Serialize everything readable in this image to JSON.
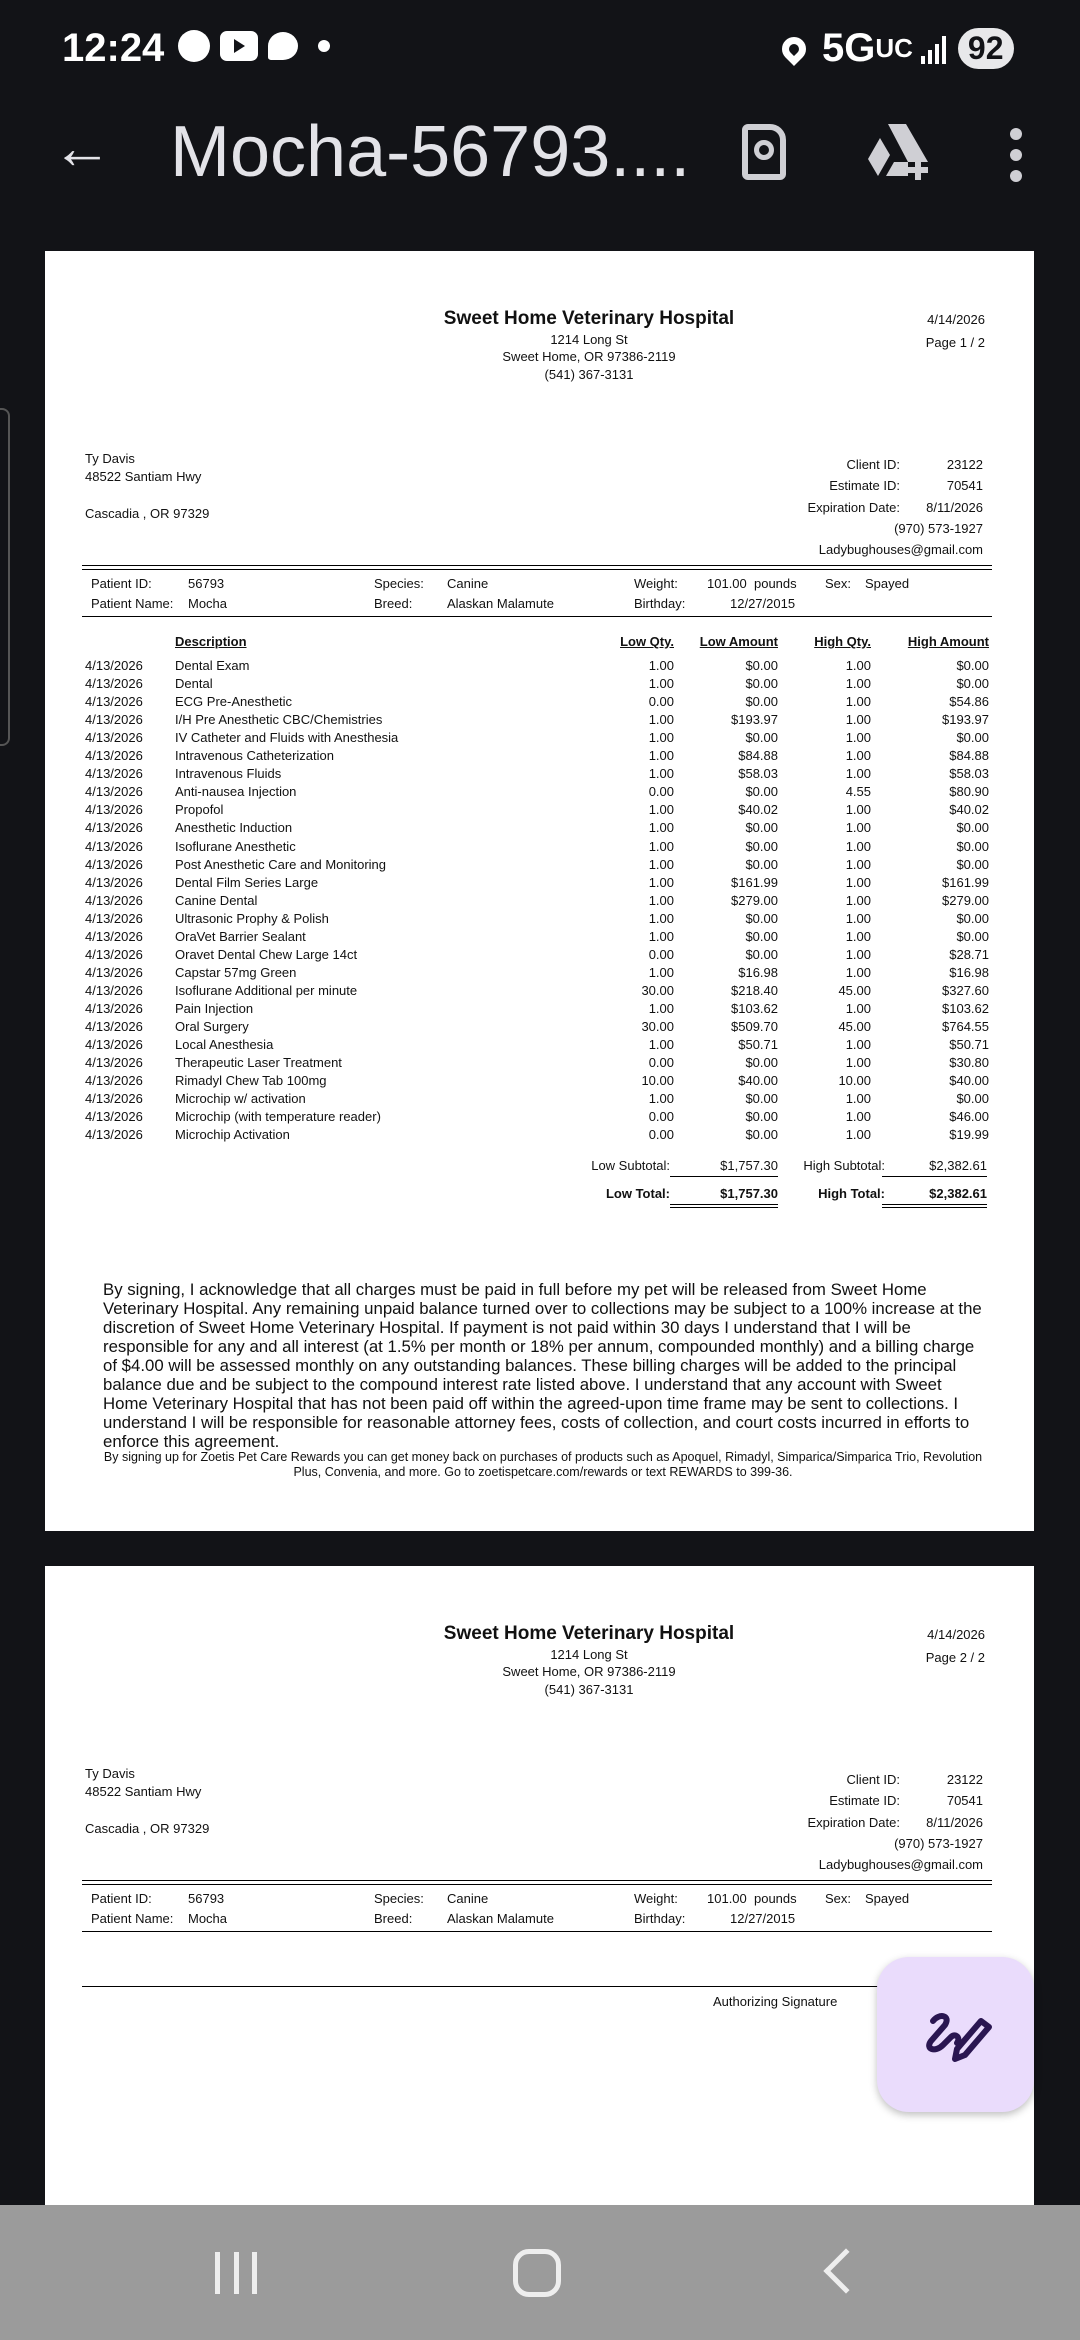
{
  "status_bar": {
    "time": "12:24",
    "network": "5G",
    "network_suffix": "UC",
    "battery": "92",
    "icons": [
      "messenger-icon",
      "youtube-icon",
      "chat-icon",
      "dot-icon",
      "location-icon",
      "signal-icon"
    ]
  },
  "toolbar": {
    "title": "Mocha-56793....",
    "icons": [
      "back-arrow-icon",
      "find-in-document-icon",
      "add-to-drive-icon",
      "more-vert-icon"
    ]
  },
  "document": {
    "hospital": {
      "name": "Sweet Home Veterinary Hospital",
      "address1": "1214 Long St",
      "address2": "Sweet Home, OR 97386-2119",
      "phone": "(541) 367-3131"
    },
    "date": "4/14/2026",
    "pages": [
      "Page 1 / 2",
      "Page 2 / 2"
    ],
    "client": {
      "name": "Ty Davis",
      "address1": "48522 Santiam Hwy",
      "address2": "Cascadia , OR 97329",
      "client_id_label": "Client ID:",
      "client_id": "23122",
      "estimate_id_label": "Estimate ID:",
      "estimate_id": "70541",
      "expiration_label": "Expiration Date:",
      "expiration": "8/11/2026",
      "phone": "(970) 573-1927",
      "email": "Ladybughouses@gmail.com"
    },
    "patient": {
      "id_label": "Patient ID:",
      "id": "56793",
      "name_label": "Patient Name:",
      "name": "Mocha",
      "species_label": "Species:",
      "species": "Canine",
      "breed_label": "Breed:",
      "breed": "Alaskan Malamute",
      "weight_label": "Weight:",
      "weight": "101.00  pounds",
      "birthday_label": "Birthday:",
      "birthday": "12/27/2015",
      "sex_label": "Sex:",
      "sex": "Spayed"
    },
    "table": {
      "headers": [
        "Description",
        "Low Qty.",
        "Low Amount",
        "High Qty.",
        "High Amount"
      ],
      "rows": [
        [
          "4/13/2026",
          "Dental Exam",
          "1.00",
          "$0.00",
          "1.00",
          "$0.00"
        ],
        [
          "4/13/2026",
          "Dental",
          "1.00",
          "$0.00",
          "1.00",
          "$0.00"
        ],
        [
          "4/13/2026",
          "ECG Pre-Anesthetic",
          "0.00",
          "$0.00",
          "1.00",
          "$54.86"
        ],
        [
          "4/13/2026",
          "I/H Pre Anesthetic CBC/Chemistries",
          "1.00",
          "$193.97",
          "1.00",
          "$193.97"
        ],
        [
          "4/13/2026",
          "IV Catheter and Fluids with Anesthesia",
          "1.00",
          "$0.00",
          "1.00",
          "$0.00"
        ],
        [
          "4/13/2026",
          "Intravenous Catheterization",
          "1.00",
          "$84.88",
          "1.00",
          "$84.88"
        ],
        [
          "4/13/2026",
          "Intravenous Fluids",
          "1.00",
          "$58.03",
          "1.00",
          "$58.03"
        ],
        [
          "4/13/2026",
          "Anti-nausea Injection",
          "0.00",
          "$0.00",
          "4.55",
          "$80.90"
        ],
        [
          "4/13/2026",
          "Propofol",
          "1.00",
          "$40.02",
          "1.00",
          "$40.02"
        ],
        [
          "4/13/2026",
          "Anesthetic Induction",
          "1.00",
          "$0.00",
          "1.00",
          "$0.00"
        ],
        [
          "4/13/2026",
          "Isoflurane Anesthetic",
          "1.00",
          "$0.00",
          "1.00",
          "$0.00"
        ],
        [
          "4/13/2026",
          "Post Anesthetic Care and Monitoring",
          "1.00",
          "$0.00",
          "1.00",
          "$0.00"
        ],
        [
          "4/13/2026",
          "Dental Film Series Large",
          "1.00",
          "$161.99",
          "1.00",
          "$161.99"
        ],
        [
          "4/13/2026",
          "Canine Dental",
          "1.00",
          "$279.00",
          "1.00",
          "$279.00"
        ],
        [
          "4/13/2026",
          "Ultrasonic Prophy & Polish",
          "1.00",
          "$0.00",
          "1.00",
          "$0.00"
        ],
        [
          "4/13/2026",
          "OraVet Barrier Sealant",
          "1.00",
          "$0.00",
          "1.00",
          "$0.00"
        ],
        [
          "4/13/2026",
          "Oravet Dental Chew Large 14ct",
          "0.00",
          "$0.00",
          "1.00",
          "$28.71"
        ],
        [
          "4/13/2026",
          "Capstar 57mg Green",
          "1.00",
          "$16.98",
          "1.00",
          "$16.98"
        ],
        [
          "4/13/2026",
          "Isoflurane Additional per minute",
          "30.00",
          "$218.40",
          "45.00",
          "$327.60"
        ],
        [
          "4/13/2026",
          "Pain Injection",
          "1.00",
          "$103.62",
          "1.00",
          "$103.62"
        ],
        [
          "4/13/2026",
          "Oral Surgery",
          "30.00",
          "$509.70",
          "45.00",
          "$764.55"
        ],
        [
          "4/13/2026",
          "Local Anesthesia",
          "1.00",
          "$50.71",
          "1.00",
          "$50.71"
        ],
        [
          "4/13/2026",
          "Therapeutic Laser Treatment",
          "0.00",
          "$0.00",
          "1.00",
          "$30.80"
        ],
        [
          "4/13/2026",
          "Rimadyl Chew Tab 100mg",
          "10.00",
          "$40.00",
          "10.00",
          "$40.00"
        ],
        [
          "4/13/2026",
          "Microchip w/ activation",
          "1.00",
          "$0.00",
          "1.00",
          "$0.00"
        ],
        [
          "4/13/2026",
          "Microchip (with temperature reader)",
          "0.00",
          "$0.00",
          "1.00",
          "$46.00"
        ],
        [
          "4/13/2026",
          "Microchip Activation",
          "0.00",
          "$0.00",
          "1.00",
          "$19.99"
        ]
      ]
    },
    "totals": {
      "low_subtotal_label": "Low Subtotal:",
      "low_subtotal": "$1,757.30",
      "high_subtotal_label": "High Subtotal:",
      "high_subtotal": "$2,382.61",
      "low_total_label": "Low Total:",
      "low_total": "$1,757.30",
      "high_total_label": "High Total:",
      "high_total": "$2,382.61"
    },
    "agreement": "By signing, I acknowledge that all charges must be paid in full before my pet will be released from Sweet Home Veterinary Hospital. Any remaining unpaid balance turned over to collections may be subject to a 100% increase at the discretion of Sweet Home Veterinary Hospital. If payment is not paid within 30 days I understand that I will be responsible for any and all interest (at 1.5% per month or 18% per annum, compounded monthly) and a billing charge of $4.00 will be assessed monthly on any outstanding balances. These billing charges will be added to the principal balance due and be subject to the compound interest rate listed above. I understand that any account with Sweet Home Veterinary Hospital that has not been paid off within the agreed-upon time frame may be sent to collections. I understand I will be responsible for reasonable attorney fees, costs of collection, and court costs incurred in efforts to enforce this agreement.",
    "rewards": "By signing up for Zoetis Pet Care Rewards you can get money back on purchases of products such as Apoquel, Rimadyl, Simparica/Simparica Trio, Revolution Plus, Convenia, and more. Go to zoetispetcare.com/rewards or text REWARDS to 399-36.",
    "signature_label": "Authorizing Signature"
  },
  "fab": {
    "icon": "edit-signature-icon",
    "color": "#eadcfc"
  },
  "navigation_bar": {
    "icons": [
      "recent-apps-icon",
      "home-icon",
      "back-icon"
    ]
  }
}
